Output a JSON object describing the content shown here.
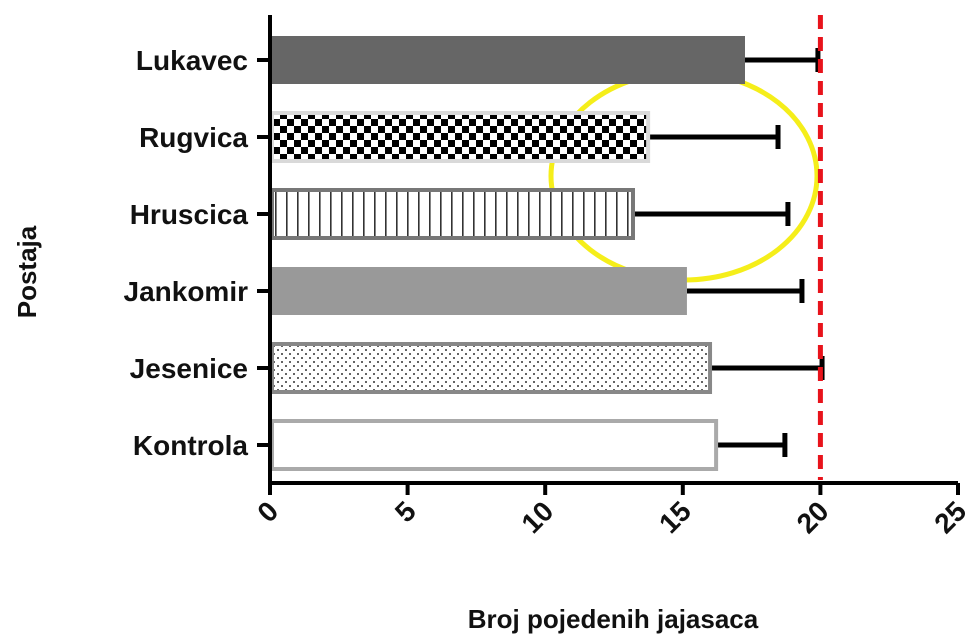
{
  "chart_data": {
    "type": "hbar",
    "xlabel": "Broj pojedenih jajasaca",
    "ylabel": "Postaja",
    "categories": [
      "Lukavec",
      "Rugvica",
      "Hruscica",
      "Jankomir",
      "Jesenice",
      "Kontrola"
    ],
    "values": [
      17.26,
      13.74,
      13.19,
      15.15,
      15.99,
      16.21
    ],
    "errors": [
      2.65,
      4.72,
      5.63,
      4.18,
      4.07,
      2.5
    ],
    "fills": [
      "solid",
      "checker",
      "vstripes",
      "solid",
      "dots",
      "solid"
    ],
    "colors": [
      "#666666",
      "#d9d9d9",
      "#777777",
      "#999999",
      "#888888",
      "#aaaaaa"
    ],
    "fill_colors": [
      "#666666",
      "checker",
      "vstripes",
      "#999999",
      "dots",
      "#ffffff"
    ],
    "reference_line": 20,
    "reference_color": "#e8131b",
    "xlim": [
      0,
      25
    ],
    "xticks": [
      0,
      5,
      10,
      15,
      20,
      25
    ]
  }
}
